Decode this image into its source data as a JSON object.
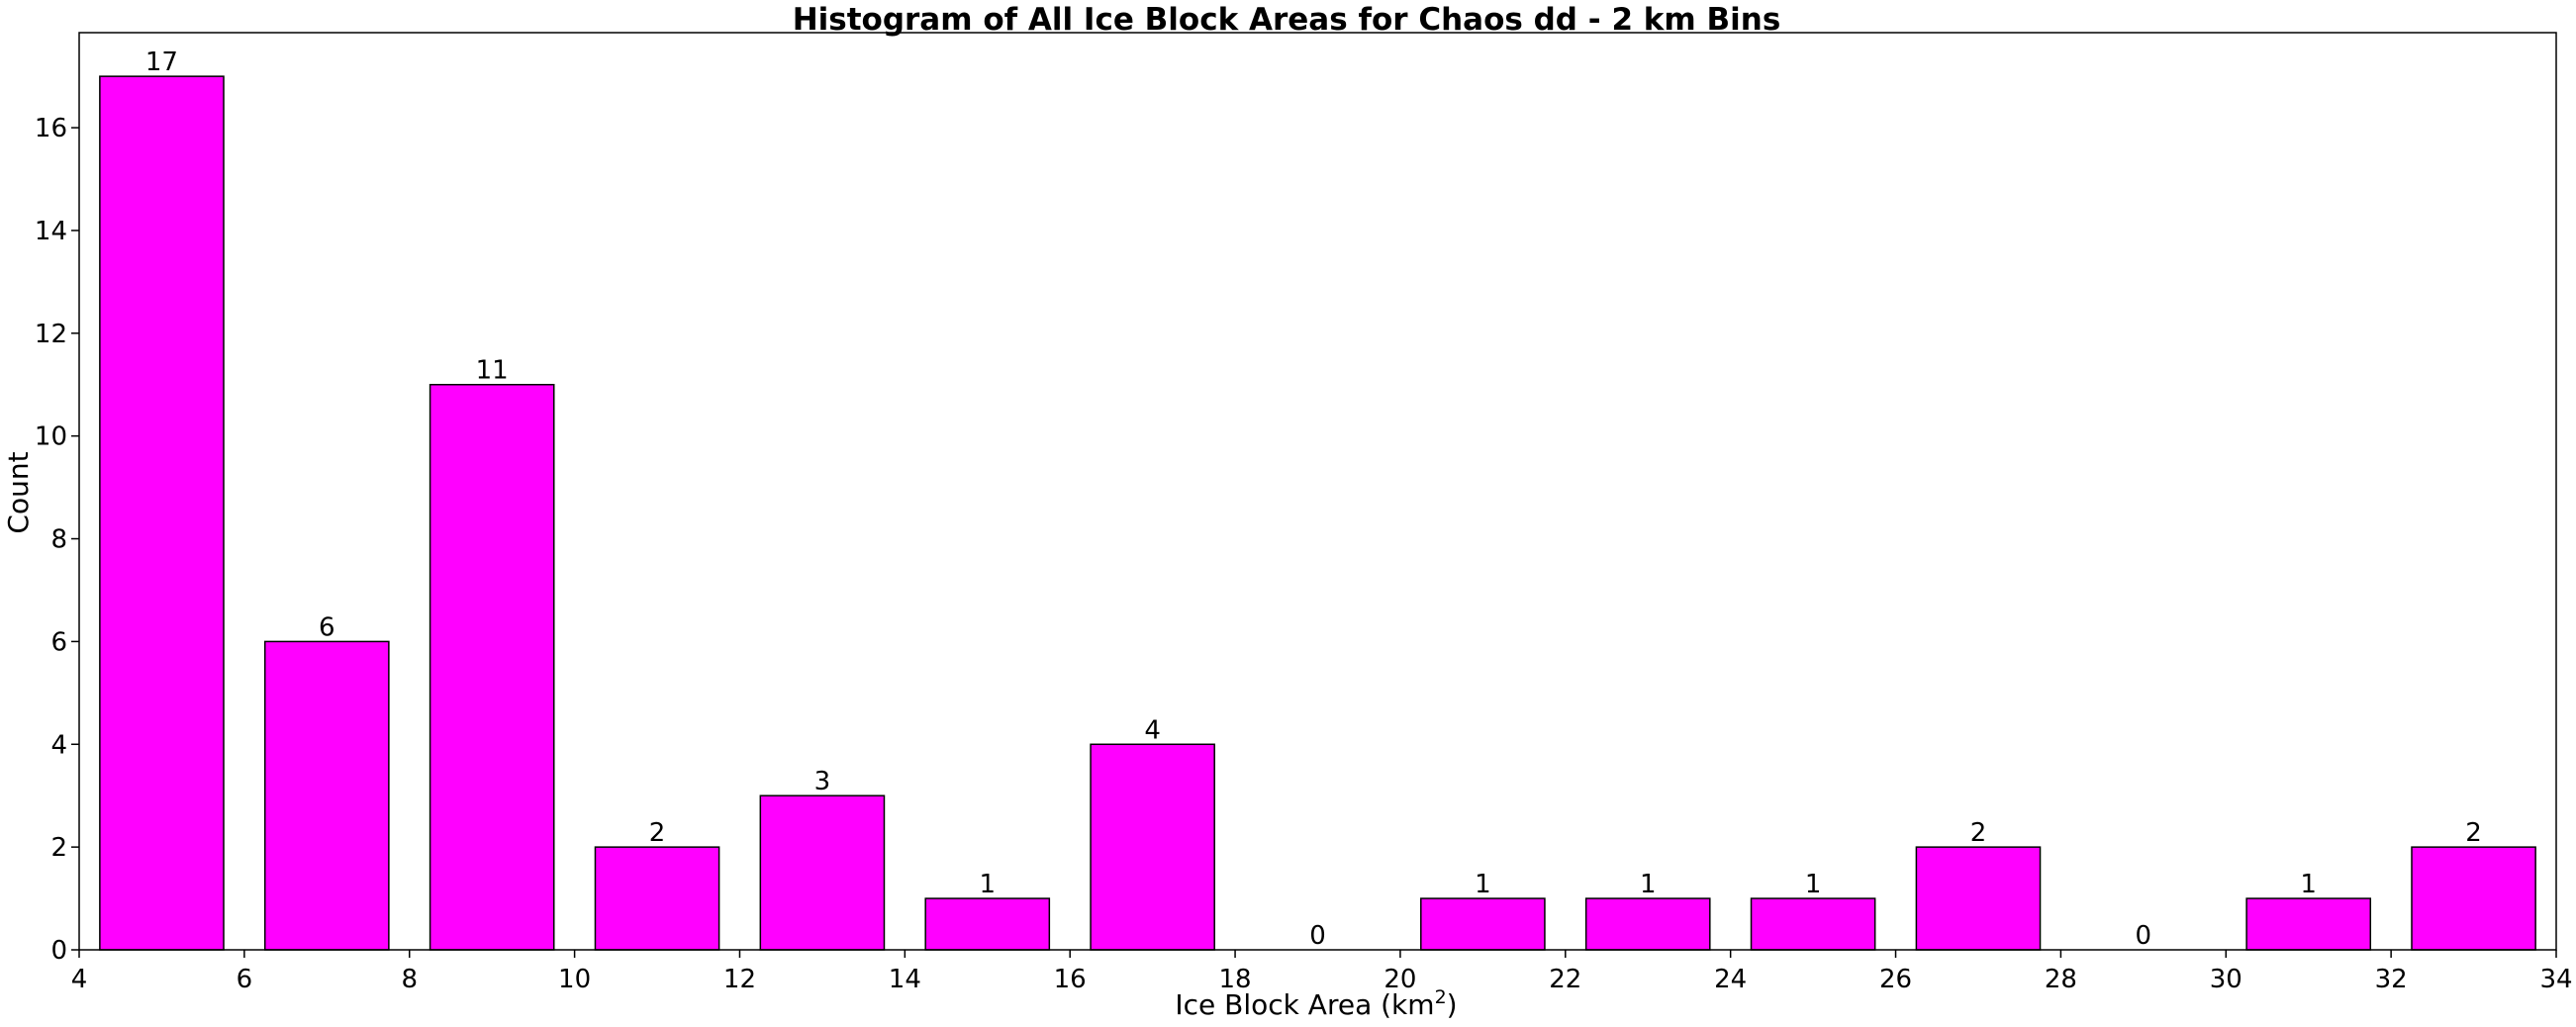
{
  "chart_data": {
    "type": "bar",
    "title": "Histogram of All Ice Block Areas for Chaos dd - 2 km Bins",
    "xlabel_main": "Ice Block Area (km",
    "xlabel_sup": "2",
    "xlabel_end": ")",
    "ylabel": "Count",
    "bin_width": 2,
    "bar_width_fraction": 0.75,
    "bins": [
      {
        "center": 5,
        "value": 17
      },
      {
        "center": 7,
        "value": 6
      },
      {
        "center": 9,
        "value": 11
      },
      {
        "center": 11,
        "value": 2
      },
      {
        "center": 13,
        "value": 3
      },
      {
        "center": 15,
        "value": 1
      },
      {
        "center": 17,
        "value": 4
      },
      {
        "center": 19,
        "value": 0
      },
      {
        "center": 21,
        "value": 1
      },
      {
        "center": 23,
        "value": 1
      },
      {
        "center": 25,
        "value": 1
      },
      {
        "center": 27,
        "value": 2
      },
      {
        "center": 29,
        "value": 0
      },
      {
        "center": 31,
        "value": 1
      },
      {
        "center": 33,
        "value": 2
      }
    ],
    "xlim": [
      4,
      34
    ],
    "ylim": [
      0,
      17.85
    ],
    "xticks": [
      4,
      6,
      8,
      10,
      12,
      14,
      16,
      18,
      20,
      22,
      24,
      26,
      28,
      30,
      32,
      34
    ],
    "yticks": [
      0,
      2,
      4,
      6,
      8,
      10,
      12,
      14,
      16
    ],
    "bar_color": "#ff00ff",
    "edge_color": "#000000",
    "grid": false,
    "legend": "none"
  }
}
